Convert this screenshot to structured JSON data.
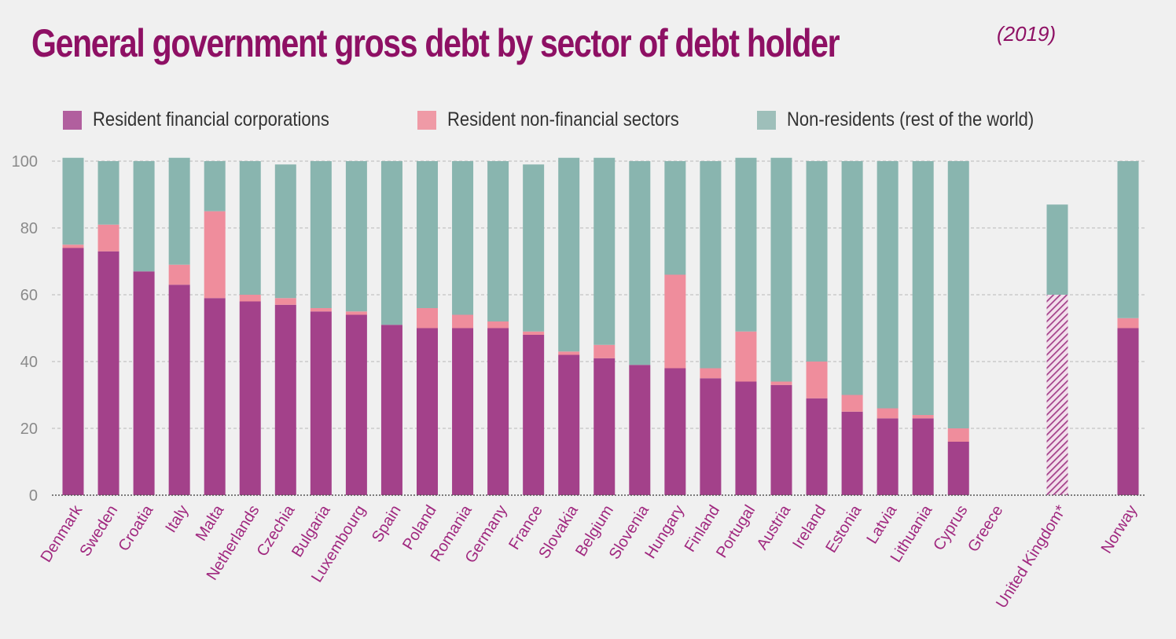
{
  "title": "General government gross debt by sector of debt holder",
  "title_year": "(2019)",
  "colors": {
    "resident_financial": "#a3418a",
    "resident_nonfinancial": "#ef8d9c",
    "non_residents": "#89b5af",
    "title": "#8e1064",
    "category_label": "#a0287f"
  },
  "chart_data": {
    "type": "bar",
    "stacked": true,
    "ylim": [
      0,
      100
    ],
    "yticks": [
      0,
      20,
      40,
      60,
      80,
      100
    ],
    "grid": true,
    "legend_position": "top",
    "categories": [
      "Denmark",
      "Sweden",
      "Croatia",
      "Italy",
      "Malta",
      "Netherlands",
      "Czechia",
      "Bulgaria",
      "Luxembourg",
      "Spain",
      "Poland",
      "Romania",
      "Germany",
      "France",
      "Slovakia",
      "Belgium",
      "Slovenia",
      "Hungary",
      "Finland",
      "Portugal",
      "Austria",
      "Ireland",
      "Estonia",
      "Latvia",
      "Lithuania",
      "Cyprus",
      "Greece",
      "United Kingdom*",
      "Norway"
    ],
    "series": [
      {
        "name": "Resident financial corporations",
        "color": "#a3418a",
        "values": [
          74,
          73,
          67,
          63,
          59,
          58,
          57,
          55,
          54,
          51,
          50,
          50,
          50,
          48,
          42,
          41,
          39,
          38,
          35,
          34,
          33,
          29,
          25,
          23,
          23,
          16,
          0,
          60,
          50
        ]
      },
      {
        "name": "Resident non-financial sectors",
        "color": "#ef8d9c",
        "values": [
          1,
          8,
          0,
          6,
          26,
          2,
          2,
          1,
          1,
          0,
          6,
          4,
          2,
          1,
          1,
          4,
          0,
          28,
          3,
          15,
          1,
          11,
          5,
          3,
          1,
          4,
          0,
          0,
          3
        ]
      },
      {
        "name": "Non-residents (rest of the world)",
        "color": "#89b5af",
        "values": [
          26,
          19,
          33,
          32,
          15,
          40,
          40,
          44,
          45,
          49,
          44,
          46,
          48,
          50,
          58,
          56,
          61,
          34,
          62,
          52,
          67,
          60,
          70,
          74,
          76,
          80,
          0,
          27,
          47
        ]
      }
    ],
    "hatched_categories": [
      "United Kingdom*"
    ]
  }
}
